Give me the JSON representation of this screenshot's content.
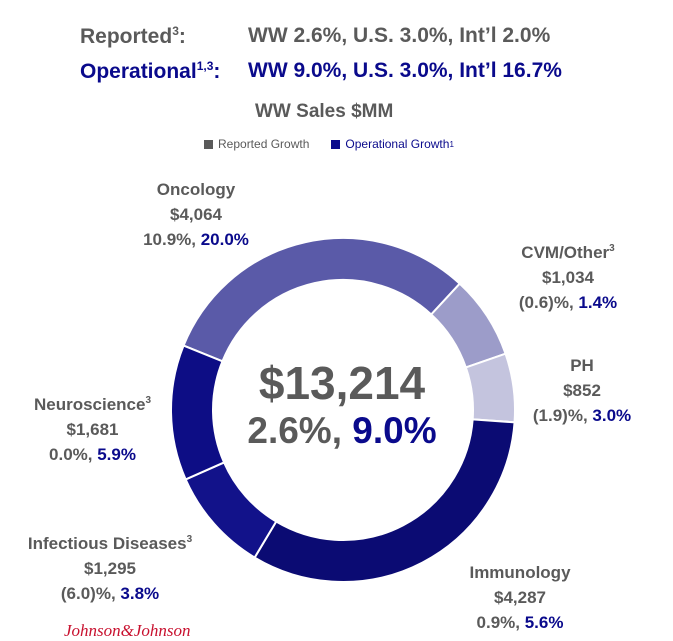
{
  "header": {
    "reported_label": "Reported",
    "reported_sup": "3",
    "reported_colon": ":",
    "reported_values": "WW 2.6%, U.S. 3.0%, Int’l 2.0%",
    "operational_label": "Operational",
    "operational_sup": "1,3",
    "operational_colon": ":",
    "operational_values": "WW 9.0%, U.S. 3.0%, Int’l 16.7%"
  },
  "colors": {
    "reported": "#5a5a5a",
    "operational": "#0a0a8c"
  },
  "chart_data": {
    "type": "pie",
    "title": "WW Sales $MM",
    "legend": [
      {
        "label": "Reported Growth",
        "sup": "",
        "color": "#5a5a5a"
      },
      {
        "label": "Operational Growth",
        "sup": "1",
        "color": "#0a0a8c"
      }
    ],
    "total": {
      "value": "$13,214",
      "reported": "2.6%",
      "sep": ", ",
      "operational": "9.0%"
    },
    "segments": [
      {
        "name": "Oncology",
        "sup": "",
        "value": 4064,
        "value_label": "$4,064",
        "reported": "10.9%",
        "operational": "20.0%",
        "color": "#5a5aa8"
      },
      {
        "name": "CVM/Other",
        "sup": "3",
        "value": 1034,
        "value_label": "$1,034",
        "reported": "(0.6)%",
        "operational": "1.4%",
        "color": "#9c9cc9"
      },
      {
        "name": "PH",
        "sup": "",
        "value": 852,
        "value_label": "$852",
        "reported": "(1.9)%",
        "operational": "3.0%",
        "color": "#c4c4de"
      },
      {
        "name": "Immunology",
        "sup": "",
        "value": 4287,
        "value_label": "$4,287",
        "reported": "0.9%",
        "operational": "5.6%",
        "color": "#0b0b73"
      },
      {
        "name": "Infectious Diseases",
        "sup": "3",
        "value": 1295,
        "value_label": "$1,295",
        "reported": "(6.0)%",
        "operational": "3.8%",
        "color": "#12128a"
      },
      {
        "name": "Neuroscience",
        "sup": "3",
        "value": 1681,
        "value_label": "$1,681",
        "reported": "0.0%",
        "operational": "5.9%",
        "color": "#0d0d85"
      }
    ]
  },
  "logo_text": "Johnson&Johnson"
}
